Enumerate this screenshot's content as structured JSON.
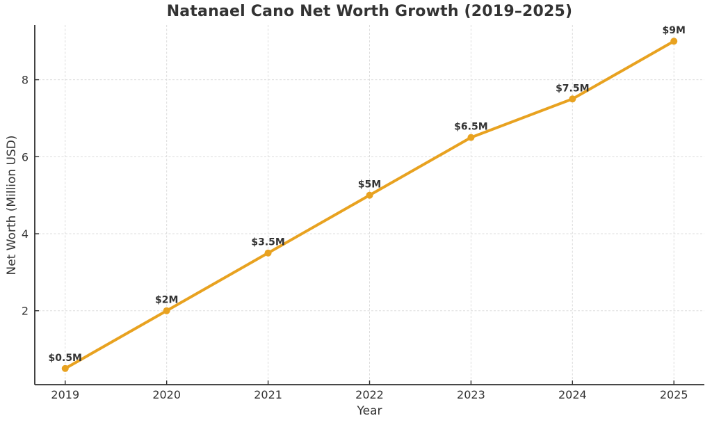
{
  "figure": {
    "background": "#ffffff"
  },
  "chart_data": {
    "type": "line",
    "title": "Natanael Cano Net Worth Growth (2019–2025)",
    "xlabel": "Year",
    "ylabel": "Net Worth (Million USD)",
    "x": [
      2019,
      2020,
      2021,
      2022,
      2023,
      2024,
      2025
    ],
    "series": [
      {
        "name": "Net Worth",
        "values": [
          0.5,
          2.0,
          3.5,
          5.0,
          6.5,
          7.5,
          9.0
        ],
        "point_labels": [
          "$0.5M",
          "$2M",
          "$3.5M",
          "$5M",
          "$6.5M",
          "$7.5M",
          "$9M"
        ],
        "color": "#E8A220"
      }
    ],
    "xticks": [
      "2019",
      "2020",
      "2021",
      "2022",
      "2023",
      "2024",
      "2025"
    ],
    "yticks": [
      2,
      4,
      6,
      8
    ],
    "xlim": [
      2018.7,
      2025.3
    ],
    "ylim": [
      0.08,
      9.42
    ],
    "grid": true,
    "grid_style": "dashed",
    "legend": "none",
    "colors": {
      "line": "#E8A220",
      "marker": "#E8A220",
      "grid": "#dcdcdc",
      "spine": "#2e2e2e",
      "tick_text": "#333333",
      "point_label_text": "#333333"
    }
  }
}
